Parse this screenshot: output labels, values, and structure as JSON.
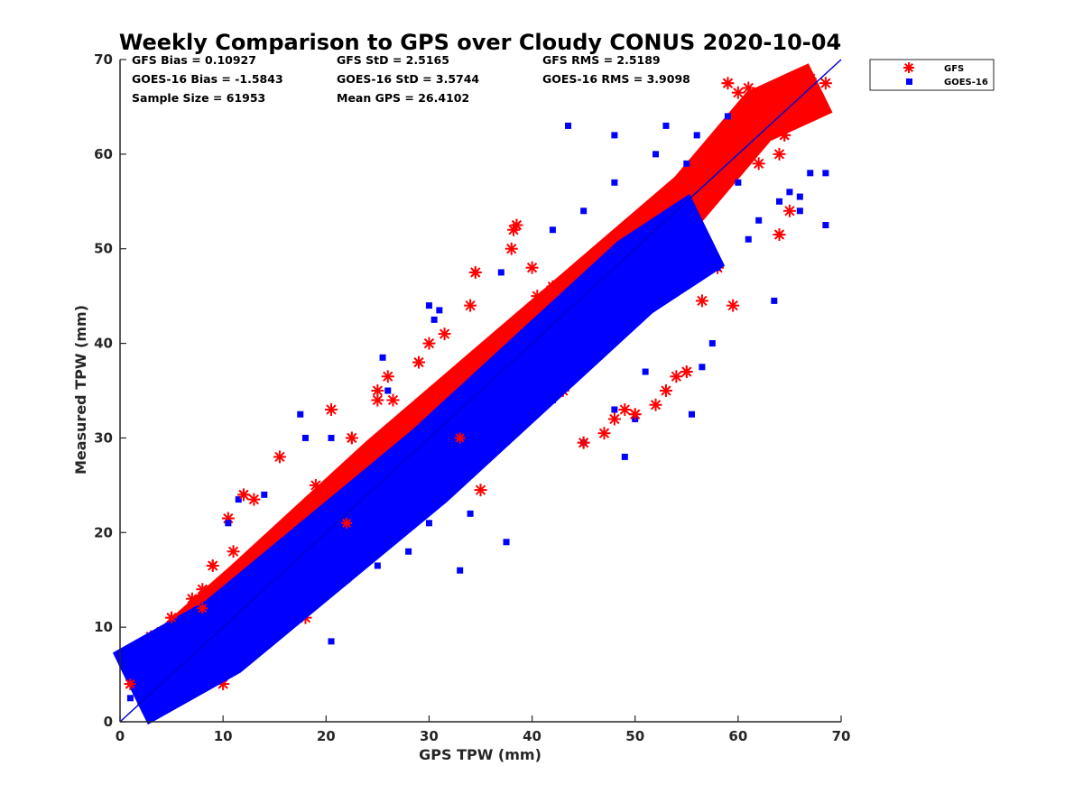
{
  "chart_data": {
    "type": "scatter",
    "title": "Weekly Comparison to GPS over Cloudy CONUS 2020-10-04",
    "xlabel": "GPS TPW (mm)",
    "ylabel": "Measured TPW (mm)",
    "xlim": [
      0,
      70
    ],
    "ylim": [
      0,
      70
    ],
    "xticks": [
      "0",
      "10",
      "20",
      "30",
      "40",
      "50",
      "60",
      "70"
    ],
    "yticks": [
      "0",
      "10",
      "20",
      "30",
      "40",
      "50",
      "60",
      "70"
    ],
    "grid": false,
    "legend_position": "outside-top-right",
    "reference_line": {
      "x": [
        0,
        70
      ],
      "y": [
        0,
        70
      ],
      "color": "#0000cc"
    },
    "stats": {
      "row1": [
        "GFS Bias = 0.10927",
        "GFS StD = 2.5165",
        "GFS RMS = 2.5189"
      ],
      "row2": [
        "GOES-16 Bias = -1.5843",
        "GOES-16 StD = 3.5744",
        "GOES-16 RMS = 3.9098"
      ],
      "row3": [
        "Sample Size = 61953",
        "Mean GPS = 26.4102"
      ]
    },
    "series": [
      {
        "name": "GFS",
        "color": "#ff0000",
        "marker": "asterisk",
        "points": [
          [
            1,
            4
          ],
          [
            2,
            3.5
          ],
          [
            3,
            9
          ],
          [
            4,
            9.5
          ],
          [
            5,
            11
          ],
          [
            6,
            3.5
          ],
          [
            7,
            13
          ],
          [
            8,
            14
          ],
          [
            9,
            16.5
          ],
          [
            10,
            4
          ],
          [
            10.5,
            21.5
          ],
          [
            11,
            18
          ],
          [
            12,
            24
          ],
          [
            13,
            23.5
          ],
          [
            15.5,
            28
          ],
          [
            20.5,
            33
          ],
          [
            22.5,
            30
          ],
          [
            25,
            34
          ],
          [
            26,
            36.5
          ],
          [
            26.5,
            34
          ],
          [
            29,
            38
          ],
          [
            30,
            40
          ],
          [
            31.5,
            41
          ],
          [
            34,
            44
          ],
          [
            34.5,
            47.5
          ],
          [
            35,
            24.5
          ],
          [
            38,
            50
          ],
          [
            38.2,
            52
          ],
          [
            38.5,
            52.5
          ],
          [
            40,
            48
          ],
          [
            40.5,
            45
          ],
          [
            43,
            35
          ],
          [
            45,
            29.5
          ],
          [
            47,
            30.5
          ],
          [
            48,
            32
          ],
          [
            49,
            33
          ],
          [
            50,
            32.5
          ],
          [
            52,
            33.5
          ],
          [
            53,
            35
          ],
          [
            54,
            36.5
          ],
          [
            55,
            37
          ],
          [
            56.5,
            44.5
          ],
          [
            58,
            48
          ],
          [
            59.5,
            44
          ],
          [
            59,
            67.5
          ],
          [
            60,
            66.5
          ],
          [
            61,
            67
          ],
          [
            61.5,
            62
          ],
          [
            62,
            65
          ],
          [
            63,
            63
          ],
          [
            63.5,
            67
          ],
          [
            64,
            60
          ],
          [
            64.5,
            62
          ],
          [
            65,
            54
          ],
          [
            65.5,
            67
          ],
          [
            66,
            66
          ],
          [
            66.5,
            66.5
          ],
          [
            67,
            68
          ],
          [
            68,
            65
          ],
          [
            68.5,
            67.5
          ],
          [
            64,
            51.5
          ],
          [
            62,
            59
          ],
          [
            60.5,
            63
          ],
          [
            58.5,
            61
          ],
          [
            57,
            58
          ],
          [
            44,
            42
          ],
          [
            42,
            46
          ],
          [
            36,
            40
          ],
          [
            33,
            30
          ],
          [
            28,
            26
          ],
          [
            25,
            35
          ],
          [
            24,
            18
          ],
          [
            22,
            21
          ],
          [
            18,
            11
          ],
          [
            14,
            9
          ],
          [
            6,
            10
          ],
          [
            8,
            12
          ],
          [
            9,
            9.5
          ],
          [
            15,
            17
          ],
          [
            19,
            25
          ]
        ],
        "trend": [
          [
            1,
            3.5
          ],
          [
            12,
            14
          ],
          [
            25,
            27
          ],
          [
            40,
            41
          ],
          [
            55,
            55
          ],
          [
            62,
            64
          ],
          [
            68,
            67
          ]
        ],
        "spread": 2.6
      },
      {
        "name": "GOES-16",
        "color": "#0000ff",
        "marker": "square",
        "points": [
          [
            43.5,
            63
          ],
          [
            53,
            63
          ],
          [
            48,
            62
          ],
          [
            56,
            62
          ],
          [
            59,
            64
          ],
          [
            67,
            58
          ],
          [
            68.5,
            58
          ],
          [
            68.5,
            52.5
          ],
          [
            66,
            55.5
          ],
          [
            63.5,
            44.5
          ],
          [
            61,
            51
          ],
          [
            58,
            48
          ],
          [
            57.5,
            40
          ],
          [
            56.5,
            37.5
          ],
          [
            55.5,
            32.5
          ],
          [
            51,
            37
          ],
          [
            49,
            28
          ],
          [
            50,
            32
          ],
          [
            48,
            33
          ],
          [
            45,
            29.5
          ],
          [
            42,
            34
          ],
          [
            40,
            35
          ],
          [
            33,
            16
          ],
          [
            37.5,
            19
          ],
          [
            34,
            22
          ],
          [
            33.5,
            26
          ],
          [
            30,
            21
          ],
          [
            28,
            18
          ],
          [
            25,
            16.5
          ],
          [
            22,
            15
          ],
          [
            20.5,
            8.5
          ],
          [
            17,
            11
          ],
          [
            13.5,
            9
          ],
          [
            12,
            9
          ],
          [
            10,
            6
          ],
          [
            5,
            3
          ],
          [
            2,
            2
          ],
          [
            1,
            2.5
          ],
          [
            10.5,
            21
          ],
          [
            11.5,
            23.5
          ],
          [
            14,
            24
          ],
          [
            17.5,
            32.5
          ],
          [
            18,
            30
          ],
          [
            20.5,
            30
          ],
          [
            25.5,
            38.5
          ],
          [
            26,
            35
          ],
          [
            30.5,
            42.5
          ],
          [
            31,
            43.5
          ],
          [
            30,
            44
          ],
          [
            37,
            47.5
          ],
          [
            42,
            52
          ],
          [
            45,
            54
          ],
          [
            48,
            57
          ],
          [
            52,
            60
          ],
          [
            55,
            59
          ],
          [
            60,
            57
          ],
          [
            64,
            55
          ],
          [
            62,
            53
          ],
          [
            65,
            56
          ],
          [
            66,
            54
          ]
        ],
        "trend": [
          [
            1,
            3.5
          ],
          [
            10,
            9
          ],
          [
            20,
            18
          ],
          [
            30,
            27
          ],
          [
            40,
            37
          ],
          [
            50,
            47
          ],
          [
            57,
            52
          ]
        ],
        "spread": 3.8
      }
    ]
  }
}
